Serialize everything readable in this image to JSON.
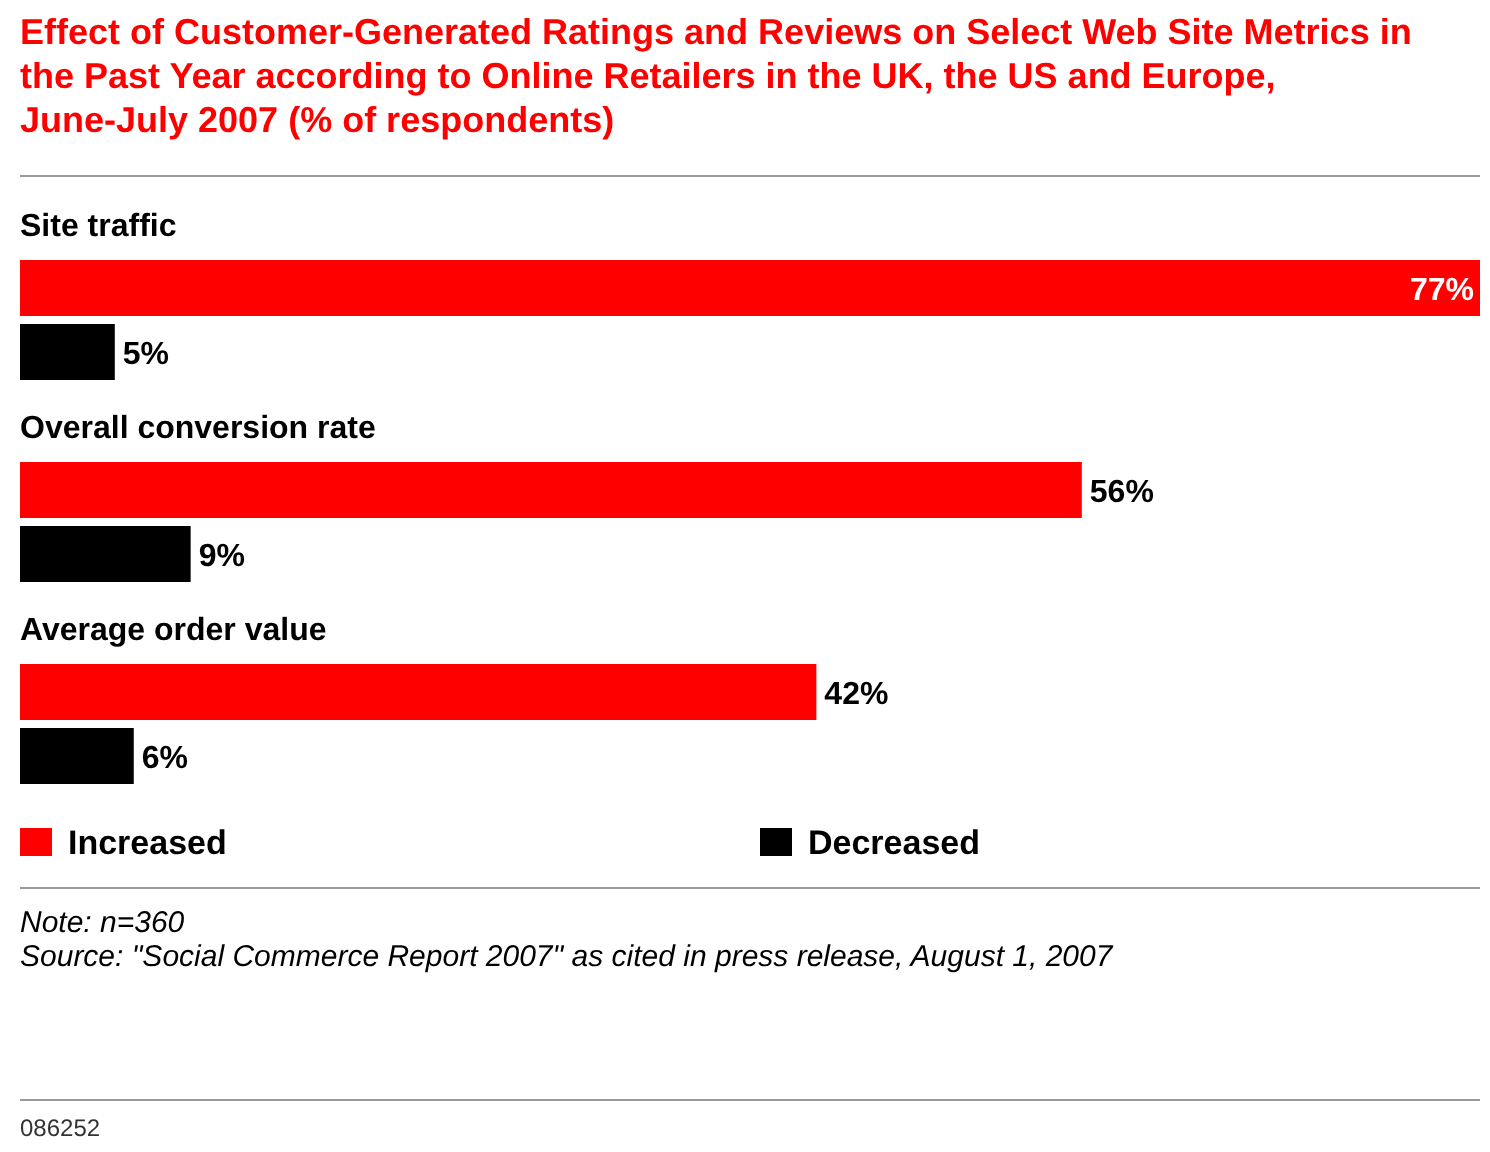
{
  "chart_data": {
    "type": "bar",
    "orientation": "horizontal",
    "title": "Effect of Customer-Generated Ratings and Reviews on Select Web Site Metrics in the Past Year according to Online Retailers in the UK, the US and Europe, June-July 2007 (% of respondents)",
    "categories": [
      "Site traffic",
      "Overall conversion rate",
      "Average order value"
    ],
    "series": [
      {
        "name": "Increased",
        "color": "#ff0000",
        "values": [
          77,
          56,
          42
        ],
        "value_labels": [
          "77%",
          "56%",
          "42%"
        ]
      },
      {
        "name": "Decreased",
        "color": "#000000",
        "values": [
          5,
          9,
          6
        ],
        "value_labels": [
          "5%",
          "9%",
          "6%"
        ]
      }
    ],
    "legend": "bottom",
    "annotations": [
      "Note: n=360",
      "Source: \"Social Commerce Report 2007\" as cited in press release, August 1, 2007",
      "086252"
    ]
  }
}
